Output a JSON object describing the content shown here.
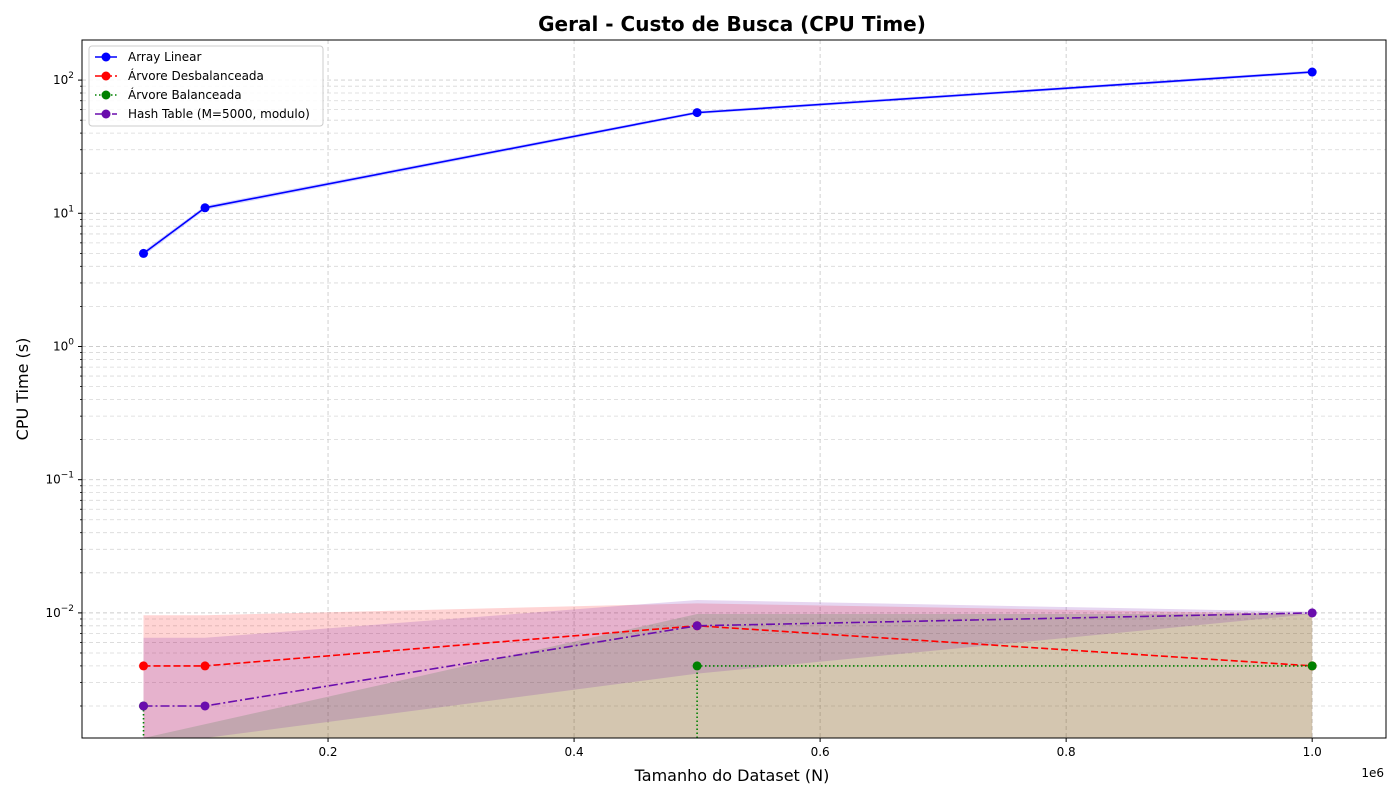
{
  "chart_data": {
    "type": "line",
    "title": "Geral - Custo de Busca (CPU Time)",
    "xlabel": "Tamanho do Dataset (N)",
    "ylabel": "CPU Time (s)",
    "x_offset_label": "1e6",
    "y_scale": "log",
    "xlim": [
      0,
      1060000
    ],
    "ylim": [
      0.00115,
      200
    ],
    "x_ticks": [
      {
        "value": 200000,
        "label": "0.2"
      },
      {
        "value": 400000,
        "label": "0.4"
      },
      {
        "value": 600000,
        "label": "0.6"
      },
      {
        "value": 800000,
        "label": "0.8"
      },
      {
        "value": 1000000,
        "label": "1.0"
      }
    ],
    "y_ticks": [
      {
        "value": 0.01,
        "base": "10",
        "exp": "−2"
      },
      {
        "value": 0.1,
        "base": "10",
        "exp": "−1"
      },
      {
        "value": 1,
        "base": "10",
        "exp": "0"
      },
      {
        "value": 10,
        "base": "10",
        "exp": "1"
      },
      {
        "value": 100,
        "base": "10",
        "exp": "2"
      }
    ],
    "grid": true,
    "legend_position": "top-left",
    "series": [
      {
        "name": "Array Linear",
        "color": "#0000ff",
        "dash": "solid",
        "x": [
          50000,
          100000,
          500000,
          1000000
        ],
        "values": [
          5.0,
          11.0,
          57.0,
          115.0
        ],
        "band_low": [
          4.8,
          10.6,
          55.5,
          112.0
        ],
        "band_high": [
          5.2,
          11.4,
          58.5,
          118.0
        ]
      },
      {
        "name": "Árvore Desbalanceada",
        "color": "#ff0000",
        "dash": "dashed",
        "x": [
          50000,
          100000,
          500000,
          1000000
        ],
        "values": [
          0.004,
          0.004,
          0.008,
          0.004
        ],
        "band_low": [
          0.0001,
          0.0001,
          0.0001,
          0.0001
        ],
        "band_high": [
          0.0096,
          0.0096,
          0.0118,
          0.0098
        ]
      },
      {
        "name": "Árvore Balanceada",
        "color": "#008000",
        "dash": "dotted",
        "x": [
          50000,
          500000,
          1000000
        ],
        "values": [
          0.002,
          0.004,
          0.004
        ],
        "line_starts_at_zero": true,
        "band_low": [
          0.0001,
          0.0001,
          0.0001
        ],
        "band_high": [
          0.0001,
          0.0098,
          0.0098
        ]
      },
      {
        "name": "Hash Table (M=5000, modulo)",
        "color": "#6a0dad",
        "dash": "dashdot",
        "x": [
          50000,
          100000,
          500000,
          1000000
        ],
        "values": [
          0.002,
          0.002,
          0.008,
          0.01
        ],
        "band_low": [
          0.0001,
          0.0001,
          0.0035,
          0.0098
        ],
        "band_high": [
          0.0065,
          0.0065,
          0.0125,
          0.0102
        ]
      }
    ]
  }
}
